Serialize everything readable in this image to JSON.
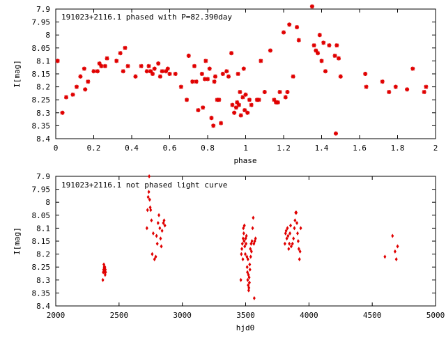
{
  "chart_data": [
    {
      "type": "scatter",
      "title": "191023+2116.1 phased with P=82.390day",
      "xlabel": "phase",
      "ylabel": "I[mag]",
      "xlim": [
        0,
        2
      ],
      "ylim": [
        8.4,
        7.9
      ],
      "y_inverted": true,
      "x_ticks": [
        "0",
        "0.2",
        "0.4",
        "0.6",
        "0.8",
        "1",
        "1.2",
        "1.4",
        "1.6",
        "1.8",
        "2"
      ],
      "y_ticks": [
        "7.9",
        "7.95",
        "8",
        "8.05",
        "8.1",
        "8.15",
        "8.2",
        "8.25",
        "8.3",
        "8.35",
        "8.4"
      ],
      "marker_color": "#e00000",
      "points": [
        [
          0.01,
          8.1
        ],
        [
          0.035,
          8.3
        ],
        [
          0.055,
          8.24
        ],
        [
          0.09,
          8.23
        ],
        [
          0.11,
          8.2
        ],
        [
          0.13,
          8.16
        ],
        [
          0.15,
          8.13
        ],
        [
          0.155,
          8.21
        ],
        [
          0.17,
          8.18
        ],
        [
          0.2,
          8.14
        ],
        [
          0.22,
          8.14
        ],
        [
          0.23,
          8.11
        ],
        [
          0.24,
          8.12
        ],
        [
          0.26,
          8.12
        ],
        [
          0.27,
          8.09
        ],
        [
          0.32,
          8.1
        ],
        [
          0.34,
          8.07
        ],
        [
          0.355,
          8.14
        ],
        [
          0.365,
          8.05
        ],
        [
          0.38,
          8.12
        ],
        [
          0.42,
          8.16
        ],
        [
          0.45,
          8.12
        ],
        [
          0.48,
          8.14
        ],
        [
          0.49,
          8.12
        ],
        [
          0.5,
          8.14
        ],
        [
          0.51,
          8.15
        ],
        [
          0.52,
          8.13
        ],
        [
          0.54,
          8.11
        ],
        [
          0.55,
          8.16
        ],
        [
          0.56,
          8.14
        ],
        [
          0.58,
          8.14
        ],
        [
          0.59,
          8.13
        ],
        [
          0.6,
          8.15
        ],
        [
          0.63,
          8.15
        ],
        [
          0.66,
          8.2
        ],
        [
          0.69,
          8.25
        ],
        [
          0.7,
          8.08
        ],
        [
          0.72,
          8.18
        ],
        [
          0.73,
          8.12
        ],
        [
          0.74,
          8.18
        ],
        [
          0.75,
          8.29
        ],
        [
          0.77,
          8.15
        ],
        [
          0.775,
          8.28
        ],
        [
          0.785,
          8.17
        ],
        [
          0.79,
          8.1
        ],
        [
          0.8,
          8.17
        ],
        [
          0.81,
          8.13
        ],
        [
          0.82,
          8.32
        ],
        [
          0.83,
          8.35
        ],
        [
          0.835,
          8.18
        ],
        [
          0.84,
          8.16
        ],
        [
          0.85,
          8.25
        ],
        [
          0.86,
          8.25
        ],
        [
          0.87,
          8.34
        ],
        [
          0.88,
          8.15
        ],
        [
          0.9,
          8.14
        ],
        [
          0.91,
          8.16
        ],
        [
          0.925,
          8.07
        ],
        [
          0.93,
          8.27
        ],
        [
          0.94,
          8.3
        ],
        [
          0.95,
          8.28
        ],
        [
          0.955,
          8.26
        ],
        [
          0.96,
          8.15
        ],
        [
          0.965,
          8.27
        ],
        [
          0.97,
          8.22
        ],
        [
          0.975,
          8.31
        ],
        [
          0.985,
          8.24
        ],
        [
          0.99,
          8.13
        ],
        [
          0.995,
          8.29
        ],
        [
          1.0,
          8.23
        ],
        [
          1.01,
          8.3
        ],
        [
          1.02,
          8.25
        ],
        [
          1.03,
          8.27
        ],
        [
          1.06,
          8.25
        ],
        [
          1.07,
          8.25
        ],
        [
          1.08,
          8.1
        ],
        [
          1.1,
          8.22
        ],
        [
          1.13,
          8.06
        ],
        [
          1.15,
          8.25
        ],
        [
          1.16,
          8.26
        ],
        [
          1.17,
          8.26
        ],
        [
          1.18,
          8.22
        ],
        [
          1.2,
          7.99
        ],
        [
          1.21,
          8.24
        ],
        [
          1.22,
          8.22
        ],
        [
          1.23,
          7.96
        ],
        [
          1.25,
          8.16
        ],
        [
          1.27,
          7.97
        ],
        [
          1.28,
          8.02
        ],
        [
          1.35,
          7.89
        ],
        [
          1.36,
          8.04
        ],
        [
          1.37,
          8.06
        ],
        [
          1.38,
          8.07
        ],
        [
          1.39,
          8.0
        ],
        [
          1.4,
          8.1
        ],
        [
          1.41,
          8.03
        ],
        [
          1.42,
          8.14
        ],
        [
          1.44,
          8.04
        ],
        [
          1.47,
          8.08
        ],
        [
          1.475,
          8.38
        ],
        [
          1.48,
          8.04
        ],
        [
          1.49,
          8.09
        ],
        [
          1.5,
          8.16
        ],
        [
          1.63,
          8.15
        ],
        [
          1.635,
          8.2
        ],
        [
          1.72,
          8.18
        ],
        [
          1.755,
          8.22
        ],
        [
          1.79,
          8.2
        ],
        [
          1.85,
          8.21
        ],
        [
          1.88,
          8.13
        ],
        [
          1.94,
          8.22
        ],
        [
          1.95,
          8.2
        ]
      ]
    },
    {
      "type": "scatter",
      "title": "191023+2116.1 not phased light curve",
      "xlabel": "hjd0",
      "ylabel": "I[mag]",
      "xlim": [
        2000,
        5000
      ],
      "ylim": [
        8.4,
        7.9
      ],
      "y_inverted": true,
      "x_ticks": [
        "2000",
        "2500",
        "3000",
        "3500",
        "4000",
        "4500",
        "5000"
      ],
      "y_ticks": [
        "7.9",
        "7.95",
        "8",
        "8.05",
        "8.1",
        "8.15",
        "8.2",
        "8.25",
        "8.3",
        "8.35",
        "8.4"
      ],
      "marker_color": "#e00000",
      "points": [
        [
          2372,
          8.3
        ],
        [
          2375,
          8.27
        ],
        [
          2378,
          8.26
        ],
        [
          2380,
          8.24
        ],
        [
          2382,
          8.25
        ],
        [
          2384,
          8.26
        ],
        [
          2386,
          8.27
        ],
        [
          2388,
          8.25
        ],
        [
          2390,
          8.28
        ],
        [
          2392,
          8.26
        ],
        [
          2394,
          8.27
        ],
        [
          2720,
          8.1
        ],
        [
          2725,
          8.03
        ],
        [
          2730,
          7.98
        ],
        [
          2735,
          7.96
        ],
        [
          2738,
          7.9
        ],
        [
          2742,
          7.99
        ],
        [
          2746,
          8.02
        ],
        [
          2750,
          8.03
        ],
        [
          2756,
          8.07
        ],
        [
          2762,
          8.2
        ],
        [
          2770,
          8.12
        ],
        [
          2780,
          8.22
        ],
        [
          2790,
          8.21
        ],
        [
          2796,
          8.13
        ],
        [
          2802,
          8.16
        ],
        [
          2808,
          8.08
        ],
        [
          2815,
          8.05
        ],
        [
          2822,
          8.1
        ],
        [
          2828,
          8.14
        ],
        [
          2834,
          8.17
        ],
        [
          2840,
          8.11
        ],
        [
          2850,
          8.08
        ],
        [
          2856,
          8.07
        ],
        [
          2862,
          8.09
        ],
        [
          3462,
          8.3
        ],
        [
          3466,
          8.2
        ],
        [
          3470,
          8.18
        ],
        [
          3474,
          8.16
        ],
        [
          3478,
          8.22
        ],
        [
          3480,
          8.14
        ],
        [
          3482,
          8.1
        ],
        [
          3485,
          8.12
        ],
        [
          3488,
          8.15
        ],
        [
          3490,
          8.09
        ],
        [
          3493,
          8.17
        ],
        [
          3497,
          8.2
        ],
        [
          3500,
          8.14
        ],
        [
          3503,
          8.16
        ],
        [
          3506,
          8.13
        ],
        [
          3510,
          8.21
        ],
        [
          3512,
          8.25
        ],
        [
          3514,
          8.27
        ],
        [
          3516,
          8.3
        ],
        [
          3518,
          8.22
        ],
        [
          3520,
          8.32
        ],
        [
          3522,
          8.28
        ],
        [
          3524,
          8.34
        ],
        [
          3526,
          8.33
        ],
        [
          3528,
          8.29
        ],
        [
          3530,
          8.31
        ],
        [
          3532,
          8.24
        ],
        [
          3534,
          8.26
        ],
        [
          3537,
          8.18
        ],
        [
          3540,
          8.21
        ],
        [
          3543,
          8.16
        ],
        [
          3546,
          8.19
        ],
        [
          3550,
          8.15
        ],
        [
          3555,
          8.1
        ],
        [
          3560,
          8.06
        ],
        [
          3565,
          8.16
        ],
        [
          3568,
          8.37
        ],
        [
          3572,
          8.15
        ],
        [
          3578,
          8.14
        ],
        [
          3810,
          8.16
        ],
        [
          3815,
          8.12
        ],
        [
          3820,
          8.11
        ],
        [
          3825,
          8.14
        ],
        [
          3830,
          8.1
        ],
        [
          3835,
          8.13
        ],
        [
          3840,
          8.18
        ],
        [
          3845,
          8.16
        ],
        [
          3850,
          8.12
        ],
        [
          3855,
          8.09
        ],
        [
          3860,
          8.17
        ],
        [
          3870,
          8.16
        ],
        [
          3878,
          8.14
        ],
        [
          3885,
          8.1
        ],
        [
          3890,
          8.07
        ],
        [
          3895,
          8.04
        ],
        [
          3900,
          8.04
        ],
        [
          3905,
          8.08
        ],
        [
          3910,
          8.12
        ],
        [
          3915,
          8.15
        ],
        [
          3920,
          8.18
        ],
        [
          3925,
          8.22
        ],
        [
          3930,
          8.19
        ],
        [
          3935,
          8.1
        ],
        [
          4600,
          8.21
        ],
        [
          4660,
          8.13
        ],
        [
          4680,
          8.19
        ],
        [
          4690,
          8.22
        ],
        [
          4700,
          8.17
        ]
      ]
    }
  ]
}
